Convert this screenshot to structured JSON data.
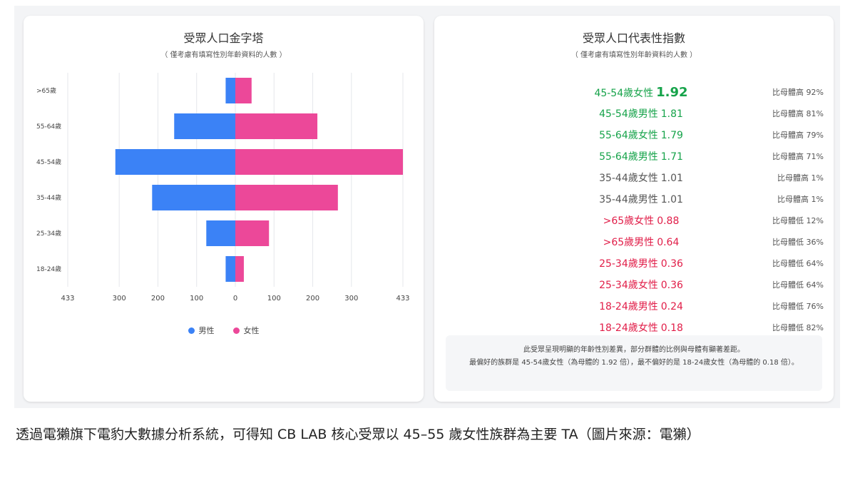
{
  "colors": {
    "male": "#3b82f6",
    "female": "#ec4899",
    "positive": "#16a34a",
    "neutral": "#555555",
    "negative": "#e11d48"
  },
  "pyramid": {
    "title": "受眾人口金字塔",
    "subtitle": "（ 僅考慮有填寫性別年齡資料的人數 ）",
    "legend": {
      "male": "男性",
      "female": "女性"
    }
  },
  "chart_data": {
    "type": "bar",
    "orientation": "horizontal-pyramid",
    "categories": [
      ">65歲",
      "55-64歲",
      "45-54歲",
      "35-44歲",
      "25-34歲",
      "18-24歲"
    ],
    "series": [
      {
        "name": "男性",
        "values": [
          25,
          158,
          310,
          215,
          75,
          25
        ]
      },
      {
        "name": "女性",
        "values": [
          42,
          212,
          433,
          265,
          87,
          22
        ]
      }
    ],
    "xlim": [
      -433,
      433
    ],
    "x_ticks": [
      -433,
      -300,
      -200,
      -100,
      0,
      100,
      200,
      300,
      433
    ],
    "x_tick_labels": [
      "433",
      "300",
      "200",
      "100",
      "0",
      "100",
      "200",
      "300",
      "433"
    ],
    "grid": true,
    "legend_position": "bottom"
  },
  "index": {
    "title": "受眾人口代表性指數",
    "subtitle": "（ 僅考慮有填寫性別年齡資料的人數 ）",
    "rows": [
      {
        "label": "45-54歲女性",
        "value": "1.92",
        "note": "比母體高 92%",
        "tone": "positive",
        "big": true
      },
      {
        "label": "45-54歲男性",
        "value": "1.81",
        "note": "比母體高 81%",
        "tone": "positive",
        "big": false
      },
      {
        "label": "55-64歲女性",
        "value": "1.79",
        "note": "比母體高 79%",
        "tone": "positive",
        "big": false
      },
      {
        "label": "55-64歲男性",
        "value": "1.71",
        "note": "比母體高 71%",
        "tone": "positive",
        "big": false
      },
      {
        "label": "35-44歲女性",
        "value": "1.01",
        "note": "比母體高 1%",
        "tone": "neutral",
        "big": false
      },
      {
        "label": "35-44歲男性",
        "value": "1.01",
        "note": "比母體高 1%",
        "tone": "neutral",
        "big": false
      },
      {
        "label": ">65歲女性",
        "value": "0.88",
        "note": "比母體低 12%",
        "tone": "negative",
        "big": false
      },
      {
        "label": ">65歲男性",
        "value": "0.64",
        "note": "比母體低 36%",
        "tone": "negative",
        "big": false
      },
      {
        "label": "25-34歲男性",
        "value": "0.36",
        "note": "比母體低 64%",
        "tone": "negative",
        "big": false
      },
      {
        "label": "25-34歲女性",
        "value": "0.36",
        "note": "比母體低 64%",
        "tone": "negative",
        "big": false
      },
      {
        "label": "18-24歲男性",
        "value": "0.24",
        "note": "比母體低 76%",
        "tone": "negative",
        "big": false
      },
      {
        "label": "18-24歲女性",
        "value": "0.18",
        "note": "比母體低 82%",
        "tone": "negative",
        "big": false
      }
    ],
    "summary_line1": "此受眾呈現明顯的年齡性別差異，部分群體的比例與母體有顯著差距。",
    "summary_line2": "最偏好的族群是 45-54歲女性（為母體的 1.92 倍），最不偏好的是 18-24歲女性（為母體的 0.18 倍）。"
  },
  "caption": "透過電獺旗下電豹大數據分析系統，可得知 CB LAB 核心受眾以 45–55 歲女性族群為主要 TA（圖片來源：電獺）"
}
